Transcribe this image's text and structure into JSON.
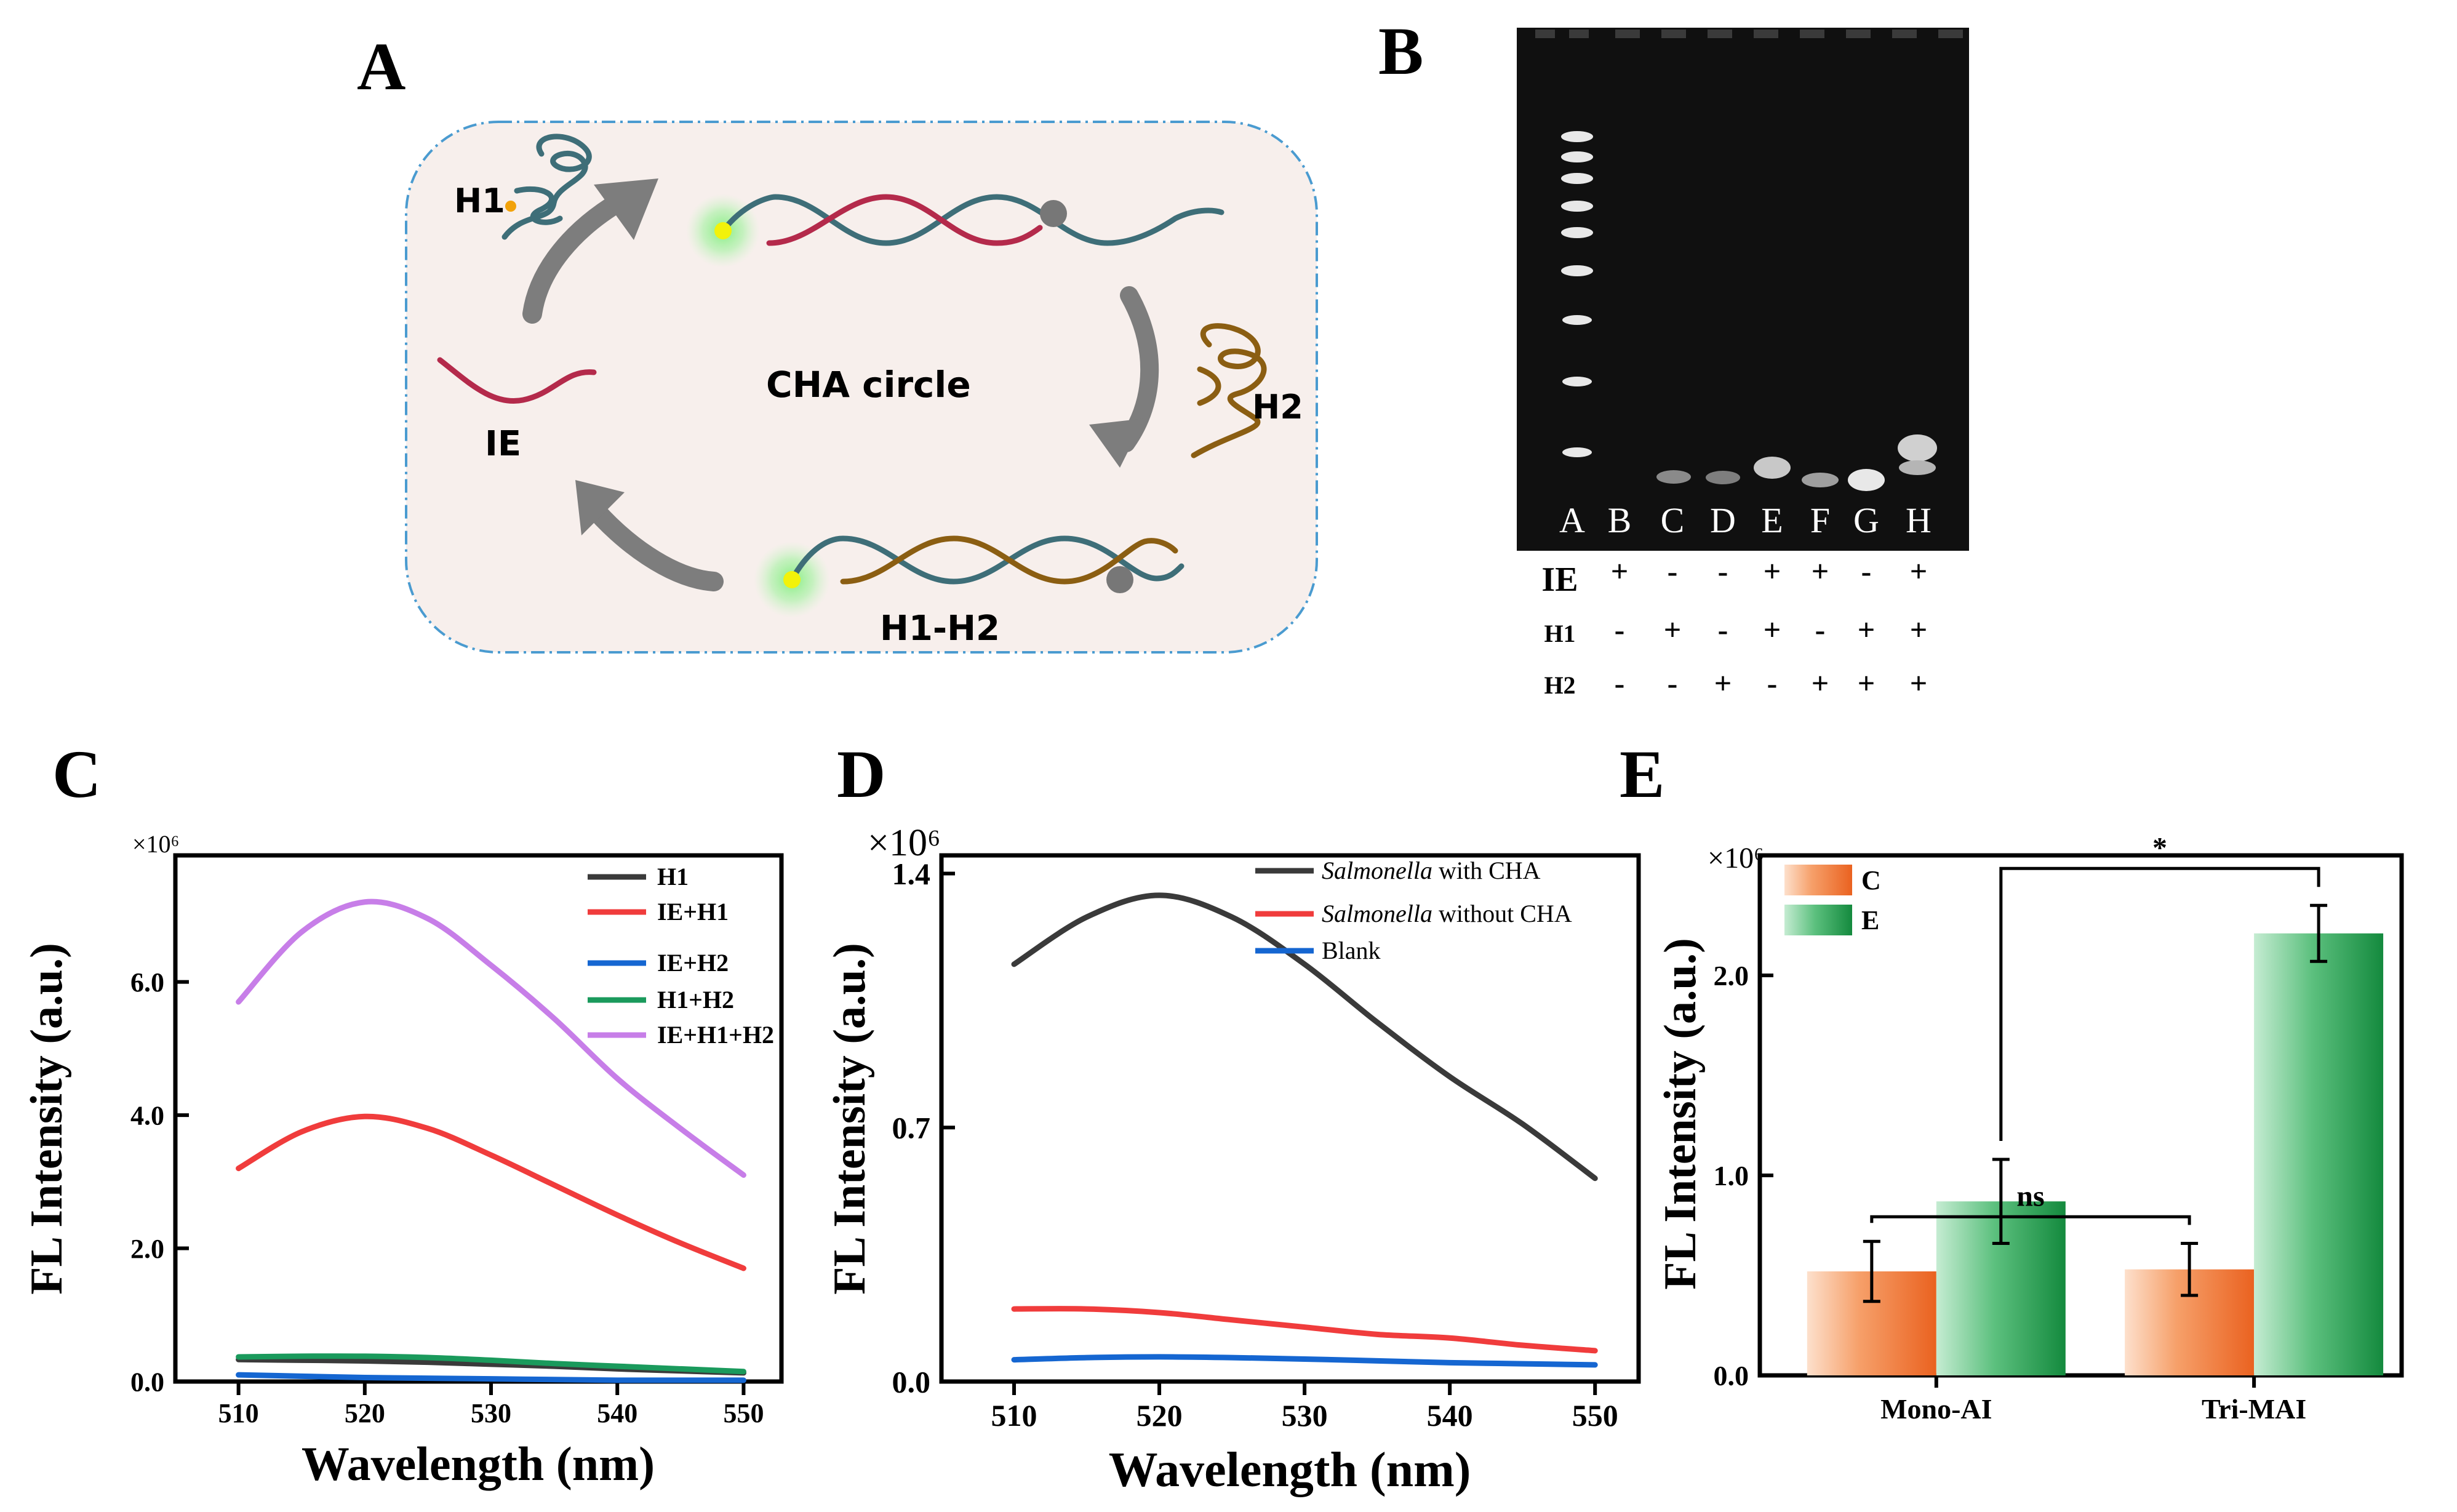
{
  "panel_labels": {
    "a": "A",
    "b": "B",
    "c": "C",
    "d": "D",
    "e": "E"
  },
  "panel_a": {
    "h1": "H1",
    "h2": "H2",
    "ie": "IE",
    "center": "CHA circle",
    "duplex": "H1-H2",
    "colors": {
      "bg": "#f7efec",
      "border": "#4a9bd0",
      "strand_red": "#b42a4b",
      "strand_teal": "#3e6e78",
      "strand_brown": "#8b5e12",
      "arrow": "#7d7d7d",
      "fluor": "#f2f20a"
    }
  },
  "panel_b": {
    "lanes": [
      "A",
      "B",
      "C",
      "D",
      "E",
      "F",
      "G",
      "H"
    ],
    "rows": [
      {
        "label": "IE",
        "signs": [
          "+",
          "-",
          "-",
          "+",
          "+",
          "-",
          "+"
        ]
      },
      {
        "label": "H1",
        "signs": [
          "-",
          "+",
          "-",
          "+",
          "-",
          "+",
          "+"
        ]
      },
      {
        "label": "H2",
        "signs": [
          "-",
          "-",
          "+",
          "-",
          "+",
          "+",
          "+"
        ]
      }
    ]
  },
  "chart_data": [
    {
      "type": "line",
      "panel": "C",
      "xlabel": "Wavelength (nm)",
      "ylabel": "FL Intensity (a.u.)",
      "y_multiplier": "×10⁶",
      "xlim": [
        505,
        553
      ],
      "ylim": [
        0,
        7.9
      ],
      "xticks": [
        510,
        520,
        530,
        540,
        550
      ],
      "xtick_labels": [
        "510",
        "520",
        "530",
        "540",
        "550"
      ],
      "yticks": [
        0,
        2,
        4,
        6
      ],
      "ytick_labels": [
        "0.0",
        "2.0",
        "4.0",
        "6.0"
      ],
      "legend_position": "top-right",
      "x": [
        510,
        515,
        520,
        525,
        530,
        535,
        540,
        545,
        550
      ],
      "series": [
        {
          "name": "H1",
          "color": "#3a3a3a",
          "values": [
            0.33,
            0.32,
            0.31,
            0.29,
            0.26,
            0.23,
            0.19,
            0.16,
            0.13
          ]
        },
        {
          "name": "IE+H1",
          "color": "#f03c3c",
          "values": [
            3.2,
            3.75,
            3.98,
            3.8,
            3.4,
            2.95,
            2.5,
            2.08,
            1.7
          ]
        },
        {
          "name": "IE+H2",
          "color": "#1566d1",
          "values": [
            0.1,
            0.08,
            0.06,
            0.05,
            0.04,
            0.03,
            0.02,
            0.02,
            0.02
          ]
        },
        {
          "name": "H1+H2",
          "color": "#1a9a5c",
          "values": [
            0.37,
            0.38,
            0.38,
            0.36,
            0.32,
            0.27,
            0.23,
            0.19,
            0.15
          ]
        },
        {
          "name": "IE+H1+H2",
          "color": "#c77ee8",
          "values": [
            5.7,
            6.75,
            7.2,
            6.95,
            6.25,
            5.45,
            4.55,
            3.8,
            3.1
          ]
        }
      ]
    },
    {
      "type": "line",
      "panel": "D",
      "xlabel": "Wavelength (nm)",
      "ylabel": "FL Intensity (a.u.)",
      "y_multiplier": "×10⁶",
      "xlim": [
        505,
        553
      ],
      "ylim": [
        0,
        1.45
      ],
      "xticks": [
        510,
        520,
        530,
        540,
        550
      ],
      "xtick_labels": [
        "510",
        "520",
        "530",
        "540",
        "550"
      ],
      "yticks": [
        0,
        0.7,
        1.4
      ],
      "ytick_labels": [
        "0.0",
        "0.7",
        "1.4"
      ],
      "legend_position": "top-right",
      "x": [
        510,
        515,
        520,
        525,
        530,
        535,
        540,
        545,
        550
      ],
      "series": [
        {
          "name_italic": "Salmonella",
          "name_rest": " with CHA",
          "color": "#3a3a3a",
          "values": [
            1.15,
            1.28,
            1.34,
            1.28,
            1.15,
            0.99,
            0.84,
            0.71,
            0.56
          ]
        },
        {
          "name_italic": "Salmonella",
          "name_rest": " without CHA",
          "color": "#f03c3c",
          "values": [
            0.2,
            0.2,
            0.19,
            0.17,
            0.15,
            0.13,
            0.12,
            0.1,
            0.085
          ]
        },
        {
          "name_italic": "",
          "name_rest": "Blank",
          "color": "#1566d1",
          "values": [
            0.06,
            0.066,
            0.068,
            0.066,
            0.062,
            0.057,
            0.052,
            0.049,
            0.046
          ]
        }
      ]
    },
    {
      "type": "bar",
      "panel": "E",
      "xlabel": "",
      "ylabel": "FL Intensity (a.u.)",
      "y_multiplier": "×10⁶",
      "ylim": [
        0,
        2.6
      ],
      "yticks": [
        0,
        1,
        2
      ],
      "ytick_labels": [
        "0.0",
        "1.0",
        "2.0"
      ],
      "categories": [
        "Mono-AI",
        "Tri-MAI"
      ],
      "legend_position": "top-left",
      "series": [
        {
          "name": "C",
          "color": "#f07a32",
          "values": [
            0.52,
            0.53
          ],
          "errors": [
            0.15,
            0.13
          ]
        },
        {
          "name": "E",
          "color": "#1e9a4e",
          "values": [
            0.87,
            2.21
          ],
          "errors": [
            0.21,
            0.14
          ]
        }
      ],
      "annotations": [
        {
          "text": "ns",
          "between": [
            "Mono-AI/C",
            "Tri-MAI/C"
          ]
        },
        {
          "text": "*",
          "between": [
            "Mono-AI/E",
            "Tri-MAI/E"
          ]
        }
      ]
    }
  ]
}
